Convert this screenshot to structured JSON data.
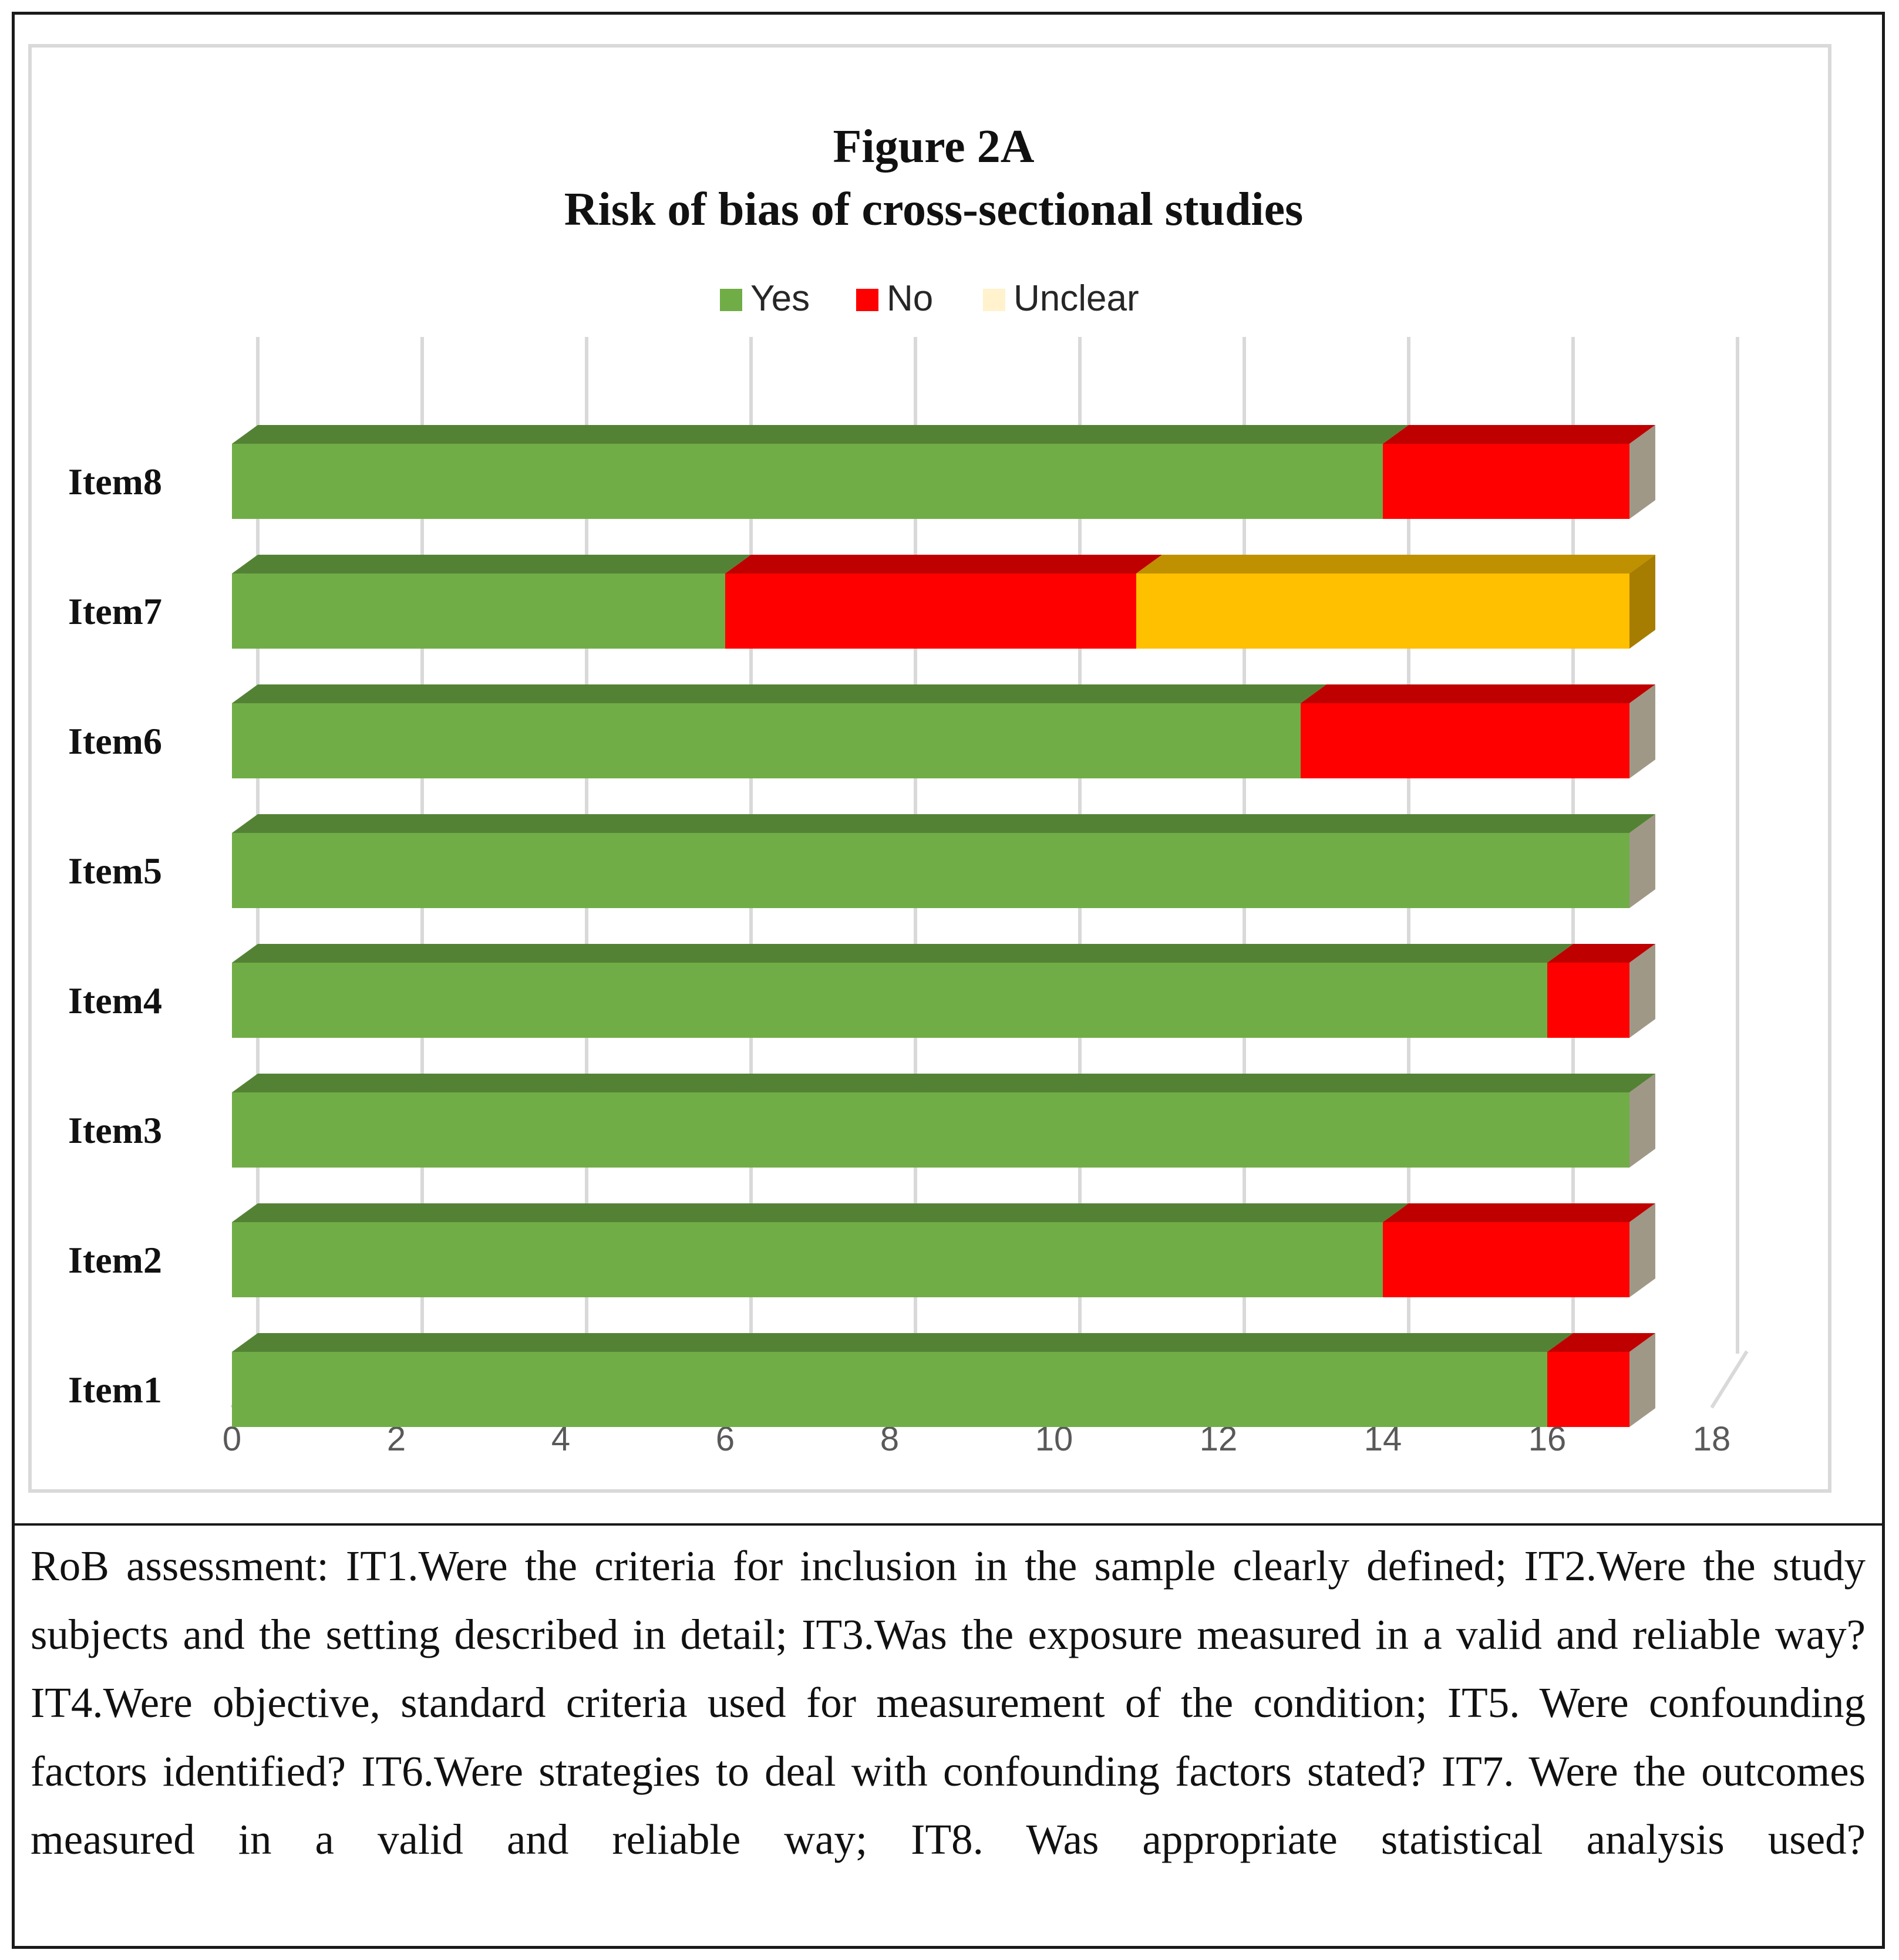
{
  "chart_data": {
    "type": "bar",
    "orientation": "horizontal",
    "stacked": true,
    "style": "3d",
    "title": "Figure 2A",
    "subtitle": "Risk of bias of cross-sectional studies",
    "categories": [
      "Item1",
      "Item2",
      "Item3",
      "Item4",
      "Item5",
      "Item6",
      "Item7",
      "Item8"
    ],
    "series": [
      {
        "name": "Yes",
        "color": "#70ad47",
        "values": [
          16,
          14,
          17,
          16,
          17,
          13,
          6,
          14
        ]
      },
      {
        "name": "No",
        "color": "#ff0000",
        "values": [
          1,
          3,
          0,
          1,
          0,
          4,
          5,
          3
        ]
      },
      {
        "name": "Unclear",
        "color": "#ffc000",
        "legend_color": "#fff2cc",
        "values": [
          0,
          0,
          0,
          0,
          0,
          0,
          6,
          0
        ]
      }
    ],
    "xlim": [
      0,
      18
    ],
    "xticks": [
      0,
      2,
      4,
      6,
      8,
      10,
      12,
      14,
      16,
      18
    ],
    "xlabel": "",
    "ylabel": "",
    "grid": true,
    "legend_position": "top"
  },
  "caption": "RoB assessment: IT1.Were the criteria for inclusion in the sample clearly defined; IT2.Were the study subjects and the setting described in detail; IT3.Was the exposure measured in a valid and reliable way? IT4.Were objective, standard criteria used for measurement of the condition; IT5. Were confounding factors identified? IT6.Were strategies to deal with confounding factors stated? IT7. Were the outcomes measured in a valid and reliable way; IT8. Was appropriate statistical analysis used?"
}
